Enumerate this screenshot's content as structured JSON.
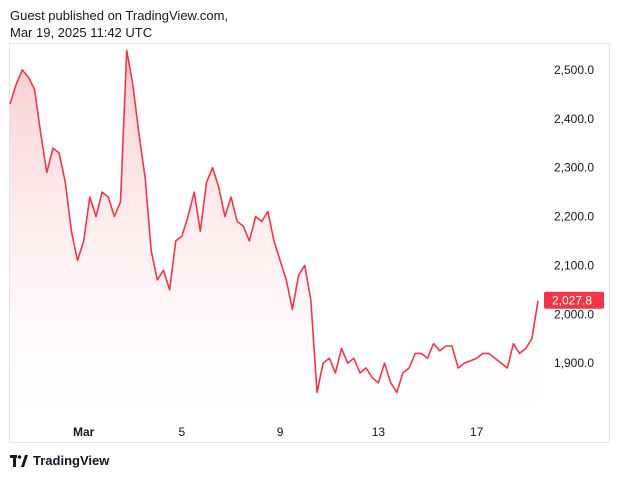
{
  "header": {
    "line1": "Guest published on TradingView.com,",
    "line2": "Mar 19, 2025 11:42 UTC"
  },
  "footer": {
    "brand": "TradingView",
    "logo_icon": "tradingview-logo-icon"
  },
  "colors": {
    "line": "#f23645",
    "fill_top": "#f8c6cb",
    "fill_bottom": "#ffffff",
    "label_bg": "#f23645",
    "grid": "#f0f3fa",
    "axis_text": "#131722"
  },
  "chart_data": {
    "type": "area",
    "title": "",
    "xlabel": "",
    "ylabel": "",
    "x_tick_labels": [
      "Mar",
      "5",
      "9",
      "13",
      "17"
    ],
    "y_tick_labels": [
      "1,900.0",
      "2,000.0",
      "2,100.0",
      "2,200.0",
      "2,300.0",
      "2,400.0",
      "2,500.0"
    ],
    "ylim": [
      1800,
      2555
    ],
    "last_value_label": "2,027.8",
    "grid": false,
    "series": [
      {
        "x": [
          "Feb 26 00:00",
          "Feb 26 06:00",
          "Feb 26 12:00",
          "Feb 26 18:00",
          "Feb 27 00:00",
          "Feb 27 06:00",
          "Feb 27 12:00",
          "Feb 27 18:00",
          "Feb 28 00:00",
          "Feb 28 06:00",
          "Feb 28 12:00",
          "Feb 28 18:00",
          "Mar 1 00:00",
          "Mar 1 06:00",
          "Mar 1 12:00",
          "Mar 1 18:00",
          "Mar 2 00:00",
          "Mar 2 06:00",
          "Mar 2 12:00",
          "Mar 2 18:00",
          "Mar 3 00:00",
          "Mar 3 06:00",
          "Mar 3 12:00",
          "Mar 3 18:00",
          "Mar 4 00:00",
          "Mar 4 06:00",
          "Mar 4 12:00",
          "Mar 4 18:00",
          "Mar 5 00:00",
          "Mar 5 06:00",
          "Mar 5 12:00",
          "Mar 5 18:00",
          "Mar 6 00:00",
          "Mar 6 06:00",
          "Mar 6 12:00",
          "Mar 6 18:00",
          "Mar 7 00:00",
          "Mar 7 06:00",
          "Mar 7 12:00",
          "Mar 7 18:00",
          "Mar 8 00:00",
          "Mar 8 06:00",
          "Mar 8 12:00",
          "Mar 8 18:00",
          "Mar 9 00:00",
          "Mar 9 06:00",
          "Mar 9 12:00",
          "Mar 9 18:00",
          "Mar 10 00:00",
          "Mar 10 06:00",
          "Mar 10 12:00",
          "Mar 10 18:00",
          "Mar 11 00:00",
          "Mar 11 06:00",
          "Mar 11 12:00",
          "Mar 11 18:00",
          "Mar 12 00:00",
          "Mar 12 06:00",
          "Mar 12 12:00",
          "Mar 12 18:00",
          "Mar 13 00:00",
          "Mar 13 06:00",
          "Mar 13 12:00",
          "Mar 13 18:00",
          "Mar 14 00:00",
          "Mar 14 06:00",
          "Mar 14 12:00",
          "Mar 14 18:00",
          "Mar 15 00:00",
          "Mar 15 06:00",
          "Mar 15 12:00",
          "Mar 15 18:00",
          "Mar 16 00:00",
          "Mar 16 06:00",
          "Mar 16 12:00",
          "Mar 16 18:00",
          "Mar 17 00:00",
          "Mar 17 06:00",
          "Mar 17 12:00",
          "Mar 17 18:00",
          "Mar 18 00:00",
          "Mar 18 06:00",
          "Mar 18 12:00",
          "Mar 18 18:00",
          "Mar 19 00:00",
          "Mar 19 06:00",
          "Mar 19 11:42"
        ],
        "values": [
          2430,
          2470,
          2500,
          2485,
          2460,
          2370,
          2290,
          2340,
          2330,
          2270,
          2170,
          2110,
          2150,
          2240,
          2200,
          2250,
          2240,
          2200,
          2230,
          2540,
          2470,
          2370,
          2280,
          2130,
          2070,
          2090,
          2050,
          2150,
          2160,
          2200,
          2250,
          2170,
          2270,
          2300,
          2260,
          2200,
          2240,
          2190,
          2180,
          2150,
          2200,
          2190,
          2210,
          2150,
          2110,
          2070,
          2010,
          2080,
          2100,
          2030,
          1840,
          1900,
          1910,
          1880,
          1930,
          1900,
          1910,
          1880,
          1890,
          1870,
          1860,
          1900,
          1860,
          1840,
          1880,
          1890,
          1920,
          1920,
          1910,
          1940,
          1925,
          1935,
          1935,
          1890,
          1900,
          1905,
          1910,
          1920,
          1920,
          1910,
          1900,
          1890,
          1940,
          1920,
          1930,
          1950,
          2027.8
        ]
      }
    ]
  }
}
